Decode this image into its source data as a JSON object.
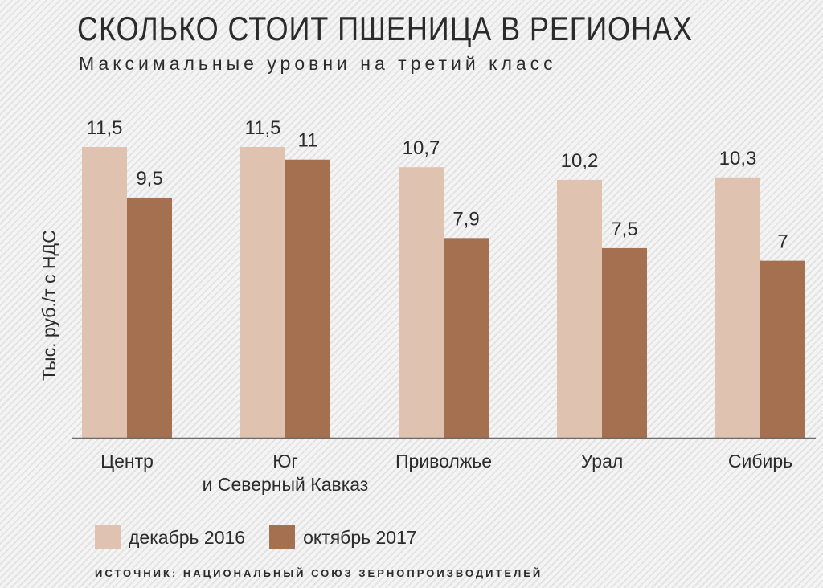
{
  "colors": {
    "dec2016": "#dfc3b0",
    "oct2017": "#a5704f",
    "text": "#2b2b2b",
    "axis": "#6b6b6b"
  },
  "chart_data": {
    "type": "bar",
    "title": "СКОЛЬКО СТОИТ ПШЕНИЦА В РЕГИОНАХ",
    "subtitle": "Максимальные уровни на третий класс",
    "ylabel": "Тыс. руб./т с НДС",
    "xlabel": "",
    "categories": [
      [
        "Центр"
      ],
      [
        "Юг",
        "и Северный Кавказ"
      ],
      [
        "Приволжье"
      ],
      [
        "Урал"
      ],
      [
        "Сибирь"
      ]
    ],
    "series": [
      {
        "name": "декабрь 2016",
        "values": [
          "11,5",
          "11,5",
          "10,7",
          "10,2",
          "10,3"
        ]
      },
      {
        "name": "октябрь 2017",
        "values": [
          "9,5",
          "11",
          "7,9",
          "7,5",
          "7"
        ]
      }
    ],
    "ylim": [
      0,
      11.5
    ],
    "grid": false,
    "legend": "bottom-left",
    "source": "ИСТОЧНИК: НАЦИОНАЛЬНЫЙ СОЮЗ ЗЕРНОПРОИЗВОДИТЕЛЕЙ"
  }
}
